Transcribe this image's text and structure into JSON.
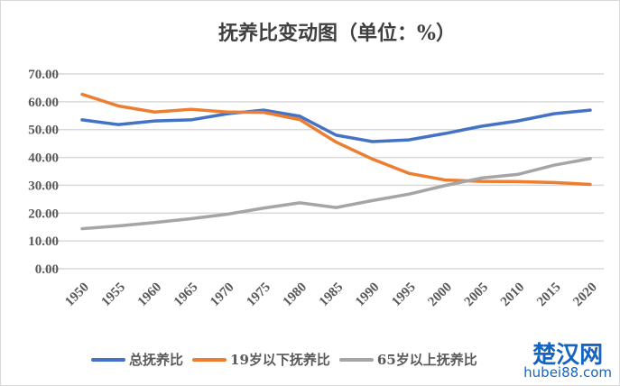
{
  "chart_data": {
    "type": "line",
    "title": "抚养比变动图（单位：%）",
    "x": [
      1950,
      1955,
      1960,
      1965,
      1970,
      1975,
      1980,
      1985,
      1990,
      1995,
      2000,
      2005,
      2010,
      2015,
      2020
    ],
    "yticks": [
      "0.00",
      "10.00",
      "20.00",
      "30.00",
      "40.00",
      "50.00",
      "60.00",
      "70.00"
    ],
    "ylim": [
      0,
      70
    ],
    "grid": true,
    "legend": "bottom",
    "series": [
      {
        "name": "总抚养比",
        "color": "#4472c4",
        "values": [
          53.5,
          51.8,
          53.1,
          53.5,
          55.7,
          57.0,
          54.8,
          48.0,
          45.7,
          46.3,
          48.6,
          51.2,
          53.1,
          55.7,
          57.0
        ]
      },
      {
        "name": "19岁以下抚养比",
        "color": "#ed7d31",
        "values": [
          62.7,
          58.5,
          56.3,
          57.3,
          56.3,
          56.2,
          53.6,
          45.5,
          39.4,
          34.3,
          31.9,
          31.4,
          31.3,
          31.0,
          30.3
        ]
      },
      {
        "name": "65岁以上抚养比",
        "color": "#a5a5a5",
        "values": [
          14.4,
          15.4,
          16.6,
          18.0,
          19.6,
          21.8,
          23.7,
          22.0,
          24.5,
          26.8,
          29.9,
          32.6,
          33.9,
          37.2,
          39.6
        ]
      }
    ]
  },
  "watermark": {
    "name": "楚汉网",
    "url": "hubei88.com"
  }
}
